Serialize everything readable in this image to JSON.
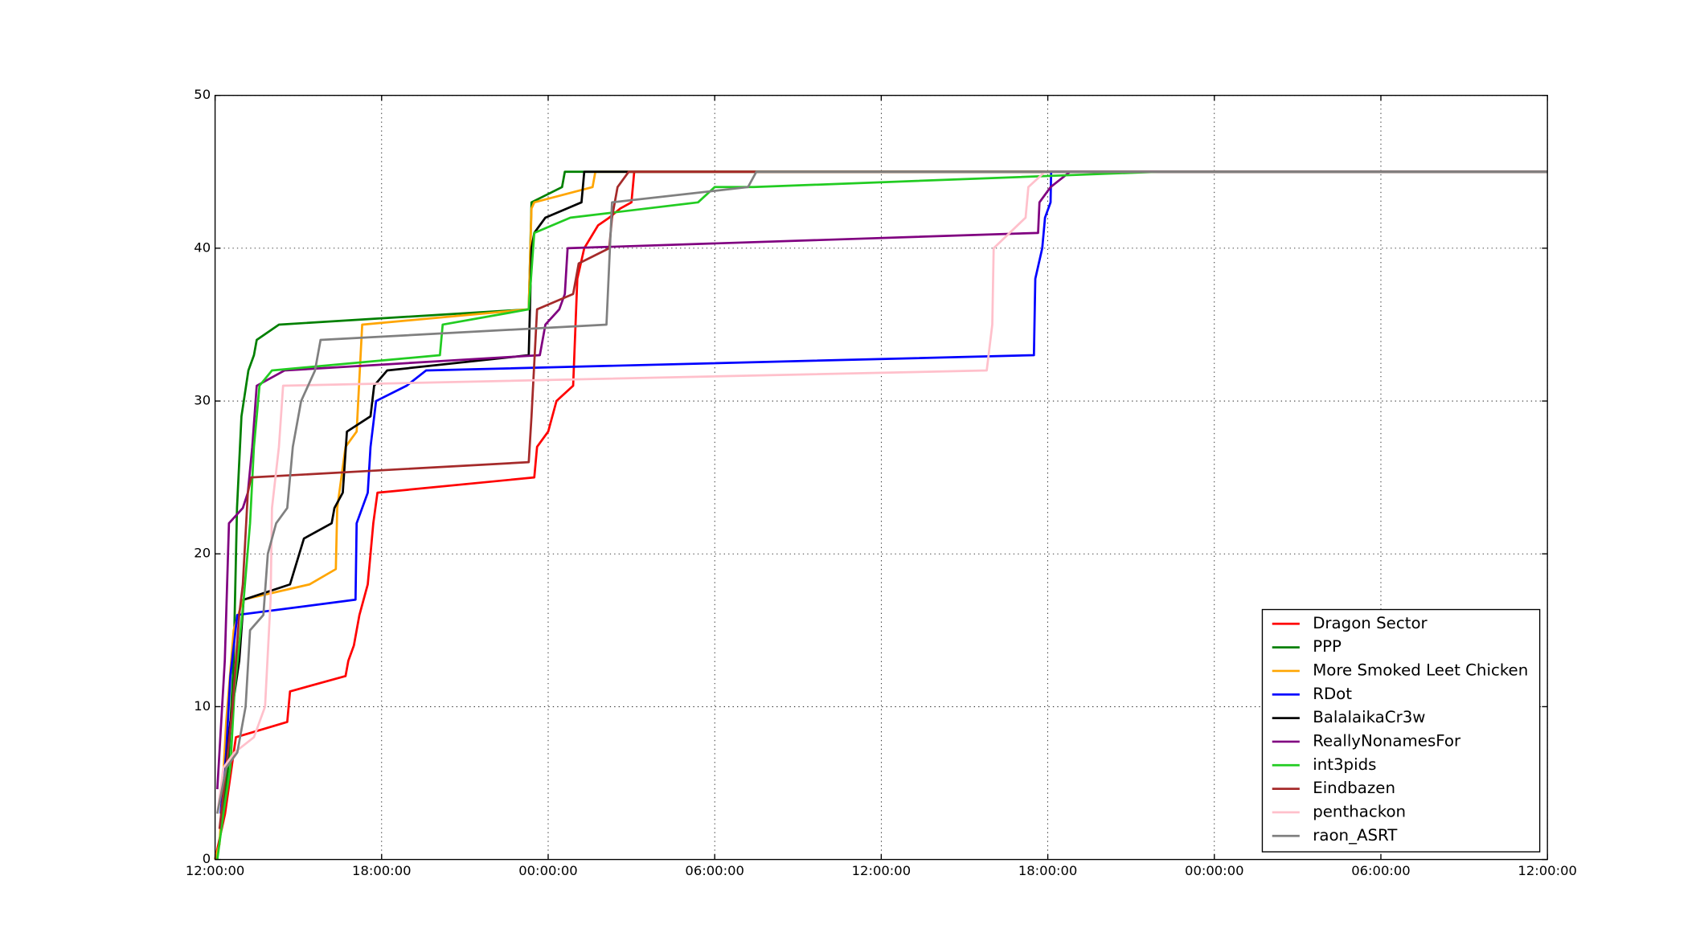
{
  "chart_data": {
    "type": "line",
    "xlim": [
      0,
      48
    ],
    "xticks": [
      {
        "value": 0,
        "label": "12:00:00"
      },
      {
        "value": 6,
        "label": "18:00:00"
      },
      {
        "value": 12,
        "label": "00:00:00"
      },
      {
        "value": 18,
        "label": "06:00:00"
      },
      {
        "value": 24,
        "label": "12:00:00"
      },
      {
        "value": 30,
        "label": "18:00:00"
      },
      {
        "value": 36,
        "label": "00:00:00"
      },
      {
        "value": 42,
        "label": "06:00:00"
      },
      {
        "value": 48,
        "label": "12:00:00"
      }
    ],
    "ylim": [
      0,
      50
    ],
    "yticks": [
      0,
      10,
      20,
      30,
      40,
      50
    ],
    "grid": true,
    "legend": "lower right",
    "series": [
      {
        "name": "Dragon Sector",
        "color": "#ff0000",
        "x": [
          0,
          0.36,
          0.75,
          2.6,
          2.7,
          4.7,
          4.8,
          5.0,
          5.2,
          5.5,
          5.7,
          5.85,
          11.5,
          11.6,
          12.0,
          12.3,
          12.9,
          13.05,
          13.3,
          13.8,
          14.2,
          14.6,
          15.0,
          15.1,
          48
        ],
        "values": [
          0,
          3,
          8,
          9,
          11,
          12,
          13,
          14,
          16,
          18,
          22,
          24,
          25,
          27,
          28,
          30,
          31,
          38,
          40,
          41.5,
          42,
          42.6,
          43,
          45,
          45
        ]
      },
      {
        "name": "PPP",
        "color": "#008000",
        "x": [
          0.15,
          0.47,
          0.67,
          0.79,
          0.95,
          1.2,
          1.4,
          1.5,
          2.3,
          11.3,
          11.4,
          12.5,
          12.6,
          48
        ],
        "values": [
          1,
          6,
          13,
          23,
          29,
          32,
          33,
          34,
          35,
          36,
          43,
          44,
          45,
          45
        ]
      },
      {
        "name": "More Smoked Leet Chicken",
        "color": "#ffa500",
        "x": [
          0,
          0.16,
          0.4,
          0.67,
          1.0,
          3.4,
          4.35,
          4.4,
          4.7,
          5.1,
          5.3,
          11.3,
          11.4,
          11.5,
          13.6,
          13.7,
          48
        ],
        "values": [
          0,
          1,
          9,
          15,
          17,
          18,
          19,
          23,
          27,
          28,
          35,
          36,
          42.6,
          43,
          44,
          45,
          45
        ]
      },
      {
        "name": "RDot",
        "color": "#0000ff",
        "x": [
          0.2,
          0.4,
          0.55,
          0.8,
          5.06,
          5.1,
          5.5,
          5.6,
          5.8,
          6.9,
          7.6,
          29.5,
          29.55,
          29.8,
          29.9,
          30.1,
          30.12,
          48
        ],
        "values": [
          3,
          7,
          12,
          16,
          17,
          22,
          24,
          27,
          30,
          31,
          32,
          33,
          38,
          40,
          42,
          43,
          45,
          45
        ]
      },
      {
        "name": "BalalaikaCr3w",
        "color": "#000000",
        "x": [
          0.28,
          0.55,
          0.87,
          1.03,
          2.7,
          3.2,
          4.2,
          4.3,
          4.6,
          4.75,
          5.6,
          5.73,
          6.2,
          11.3,
          11.4,
          11.5,
          11.9,
          13.2,
          13.3,
          48
        ],
        "values": [
          4,
          9,
          13,
          17,
          18,
          21,
          22,
          23,
          24,
          28,
          29,
          31,
          32,
          33,
          40,
          41,
          42,
          43,
          45,
          45
        ]
      },
      {
        "name": "ReallyNonamesFor",
        "color": "#800080",
        "x": [
          0.08,
          0.35,
          0.5,
          1.0,
          1.18,
          1.34,
          1.5,
          2.5,
          11.7,
          11.9,
          12.4,
          12.6,
          12.7,
          29.65,
          29.7,
          30.1,
          30.8,
          48
        ],
        "values": [
          4.6,
          13,
          22,
          23,
          24,
          27,
          31,
          32,
          33,
          35,
          36,
          37,
          40,
          41,
          43,
          44,
          45,
          45
        ]
      },
      {
        "name": "int3pids",
        "color": "#22cc22",
        "x": [
          0.08,
          0.3,
          0.55,
          0.7,
          1.03,
          1.26,
          1.4,
          1.6,
          2.05,
          8.1,
          8.2,
          11.3,
          11.5,
          12.8,
          17.4,
          18.0,
          19.4,
          34.0,
          48
        ],
        "values": [
          0,
          3,
          6,
          11,
          17,
          22,
          27,
          31,
          32,
          33,
          35,
          36,
          41,
          42,
          43,
          44,
          44,
          45,
          45
        ]
      },
      {
        "name": "Eindbazen",
        "color": "#a52a2a",
        "x": [
          0.16,
          0.4,
          0.63,
          0.87,
          1.0,
          1.18,
          1.3,
          11.3,
          11.4,
          11.6,
          12.9,
          13.1,
          14.2,
          14.3,
          14.5,
          14.9,
          48
        ],
        "values": [
          2,
          6,
          10,
          16,
          18,
          24,
          25,
          26,
          29,
          36,
          37,
          39,
          40,
          42,
          44,
          45,
          45
        ]
      },
      {
        "name": "penthackon",
        "color": "#ffc0cb",
        "x": [
          0.08,
          0.3,
          0.7,
          1.4,
          1.8,
          2.0,
          2.05,
          2.3,
          2.45,
          27.8,
          28.0,
          28.05,
          29.2,
          29.3,
          29.9,
          48
        ],
        "values": [
          3,
          6,
          7,
          8,
          10,
          17,
          23,
          27,
          31,
          32,
          35,
          40,
          42,
          44,
          45,
          45
        ]
      },
      {
        "name": "raon_ASRT",
        "color": "#808080",
        "x": [
          0.08,
          0.4,
          0.8,
          1.1,
          1.26,
          1.74,
          1.9,
          2.2,
          2.6,
          2.8,
          3.1,
          3.6,
          3.8,
          14.1,
          14.2,
          14.3,
          19.2,
          19.5,
          48
        ],
        "values": [
          3,
          6,
          7,
          10,
          15,
          16,
          20,
          22,
          23,
          27,
          30,
          32,
          34,
          35,
          39,
          43,
          44,
          45,
          45
        ]
      }
    ]
  }
}
